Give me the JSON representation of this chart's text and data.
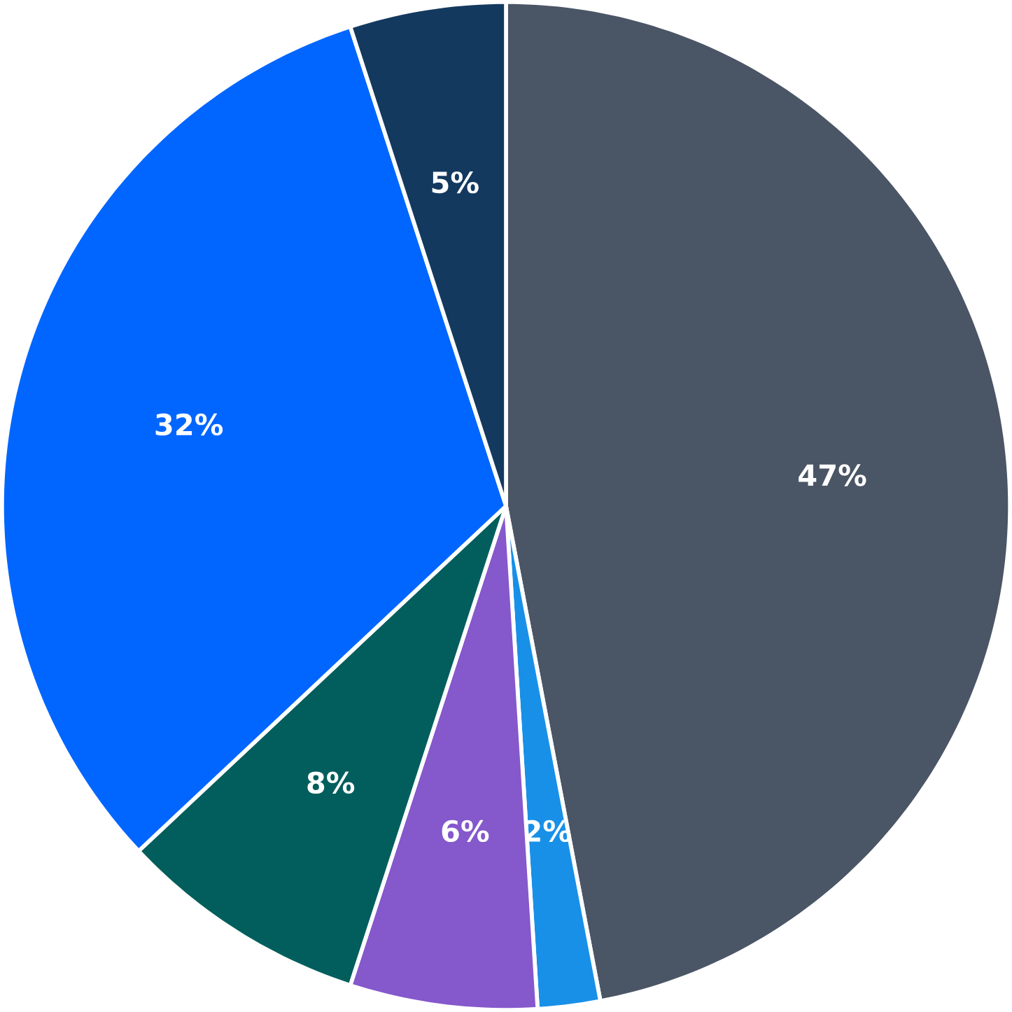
{
  "chart_data": {
    "type": "pie",
    "categories": [
      null,
      null,
      null,
      null,
      null,
      null
    ],
    "values": [
      47,
      2,
      6,
      8,
      32,
      5
    ],
    "value_labels": [
      "47%",
      "2%",
      "6%",
      "8%",
      "32%",
      "5%"
    ],
    "colors": [
      "#4a5565",
      "#1890e8",
      "#8558cc",
      "#025e5c",
      "#0066ff",
      "#14395f"
    ]
  }
}
